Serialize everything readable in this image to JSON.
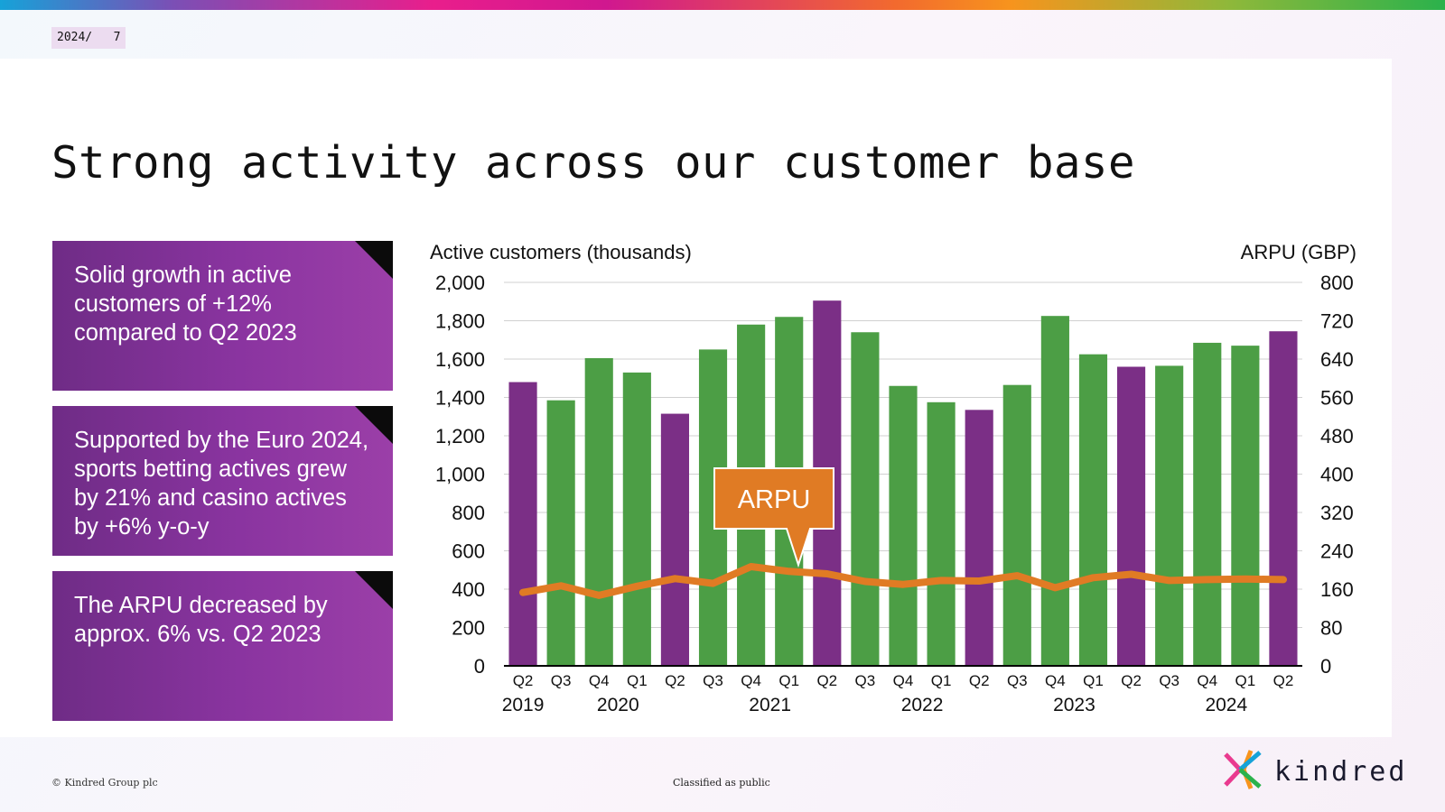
{
  "header": {
    "page_tag": "2024/   7"
  },
  "title": "Strong activity across our customer base",
  "bullets": [
    "Solid growth in active customers of +12% compared to Q2 2023",
    "Supported by the Euro 2024, sports betting actives grew by 21% and casino actives by +6% y-o-y",
    "The ARPU decreased by approx. 6% vs. Q2 2023"
  ],
  "footer": {
    "copyright": "© Kindred Group plc",
    "classification": "Classified as public",
    "brand": "kindred"
  },
  "colors": {
    "purple": "#7b2f86",
    "green": "#4c9e45",
    "orange": "#e07b24",
    "accent_bar": "#c2188a"
  },
  "chart_data": {
    "type": "bar",
    "title": "",
    "ylabel": "Active customers (thousands)",
    "y2label": "ARPU (GBP)",
    "ylim": [
      0,
      2000
    ],
    "y2lim": [
      0,
      800
    ],
    "yticks": [
      "0",
      "200",
      "400",
      "600",
      "800",
      "1,000",
      "1,200",
      "1,400",
      "1,600",
      "1,800",
      "2,000"
    ],
    "y2ticks": [
      "0",
      "80",
      "160",
      "240",
      "320",
      "400",
      "480",
      "560",
      "640",
      "720",
      "800"
    ],
    "categories": [
      "Q2",
      "Q3",
      "Q4",
      "Q1",
      "Q2",
      "Q3",
      "Q4",
      "Q1",
      "Q2",
      "Q3",
      "Q4",
      "Q1",
      "Q2",
      "Q3",
      "Q4",
      "Q1",
      "Q2",
      "Q3",
      "Q4",
      "Q1",
      "Q2"
    ],
    "years": [
      {
        "label": "2019",
        "start": 0,
        "end": 1
      },
      {
        "label": "2020",
        "start": 1,
        "end": 5
      },
      {
        "label": "2021",
        "start": 5,
        "end": 9
      },
      {
        "label": "2022",
        "start": 9,
        "end": 13
      },
      {
        "label": "2023",
        "start": 13,
        "end": 17
      },
      {
        "label": "2024",
        "start": 17,
        "end": 21
      }
    ],
    "series": [
      {
        "name": "Active customers (thousands)",
        "axis": "left",
        "values": [
          1480,
          1385,
          1605,
          1530,
          1315,
          1650,
          1780,
          1820,
          1905,
          1740,
          1460,
          1375,
          1335,
          1465,
          1825,
          1625,
          1560,
          1565,
          1685,
          1670,
          1745
        ],
        "bar_colors": [
          "purple",
          "green",
          "green",
          "green",
          "purple",
          "green",
          "green",
          "green",
          "purple",
          "green",
          "green",
          "green",
          "purple",
          "green",
          "green",
          "green",
          "purple",
          "green",
          "green",
          "green",
          "purple"
        ]
      },
      {
        "name": "ARPU",
        "axis": "right",
        "type": "line",
        "values": [
          153,
          167,
          147,
          166,
          182,
          172,
          207,
          197,
          192,
          176,
          170,
          178,
          177,
          188,
          163,
          184,
          191,
          178,
          180,
          181,
          180
        ]
      }
    ],
    "annotation": "ARPU"
  }
}
